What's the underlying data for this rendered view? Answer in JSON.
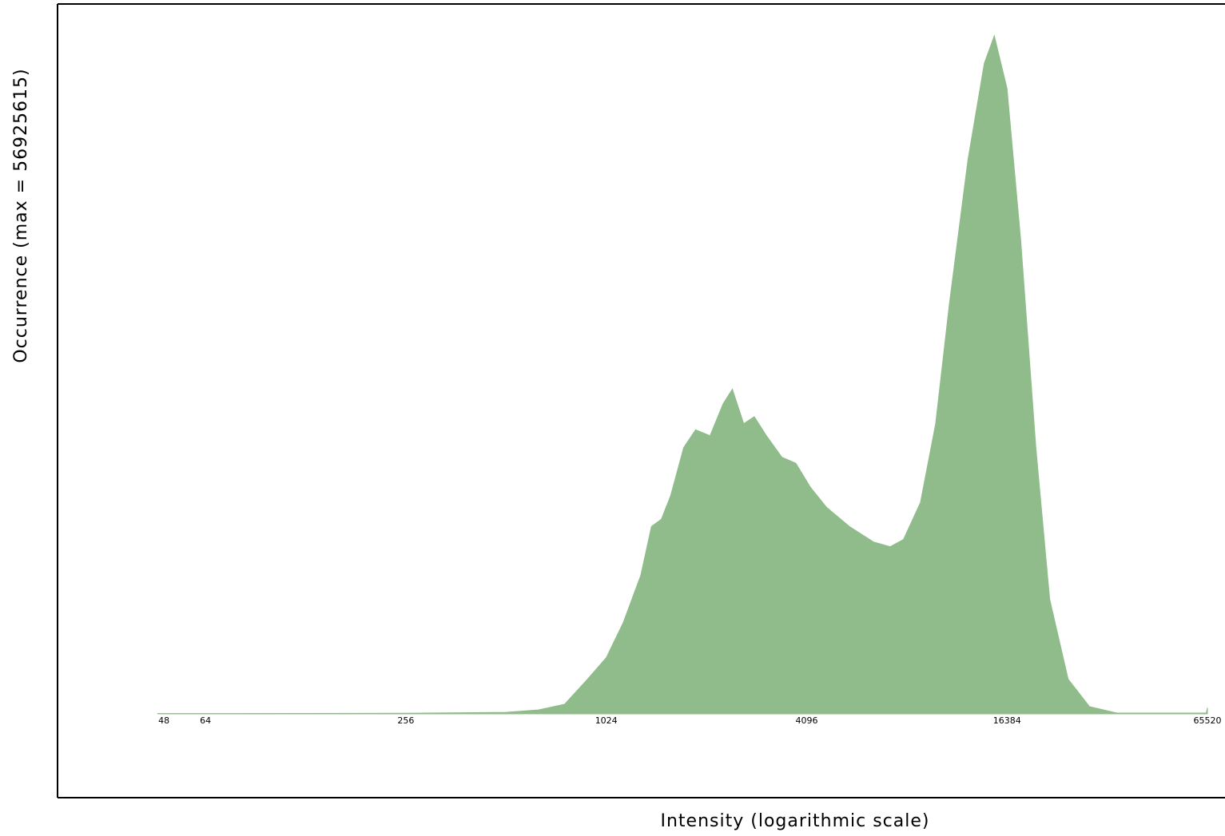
{
  "chart_data": {
    "type": "area",
    "x_label": "Intensity (logarithmic scale)",
    "y_label": "Occurrence (max = 56925615)",
    "log_x": true,
    "color": "#8fbc8a",
    "xlim": [
      23,
      74000
    ],
    "ylim": [
      0,
      56925615
    ],
    "xticks": [
      48,
      64,
      256,
      1024,
      4096,
      16384,
      65520
    ],
    "x": [
      46,
      64,
      256,
      512,
      640,
      768,
      900,
      1024,
      1150,
      1300,
      1400,
      1500,
      1600,
      1750,
      1900,
      2100,
      2300,
      2450,
      2650,
      2850,
      3100,
      3450,
      3800,
      4200,
      4700,
      5500,
      6500,
      7300,
      8000,
      9000,
      10000,
      11000,
      12500,
      14000,
      15000,
      16384,
      18000,
      20000,
      22000,
      25000,
      29000,
      35000,
      65000,
      65520
    ],
    "values": [
      30000,
      30000,
      50000,
      130000,
      330000,
      800000,
      2900000,
      4700000,
      7600000,
      11600000,
      15700000,
      16300000,
      18300000,
      22300000,
      23800000,
      23300000,
      26000000,
      27200000,
      24300000,
      24900000,
      23300000,
      21500000,
      21000000,
      19000000,
      17300000,
      15700000,
      14400000,
      14000000,
      14600000,
      17700000,
      24300000,
      34400000,
      46400000,
      54500000,
      56800000,
      52400000,
      39700000,
      22300000,
      9600000,
      2900000,
      600000,
      70000,
      70000,
      500000
    ]
  }
}
